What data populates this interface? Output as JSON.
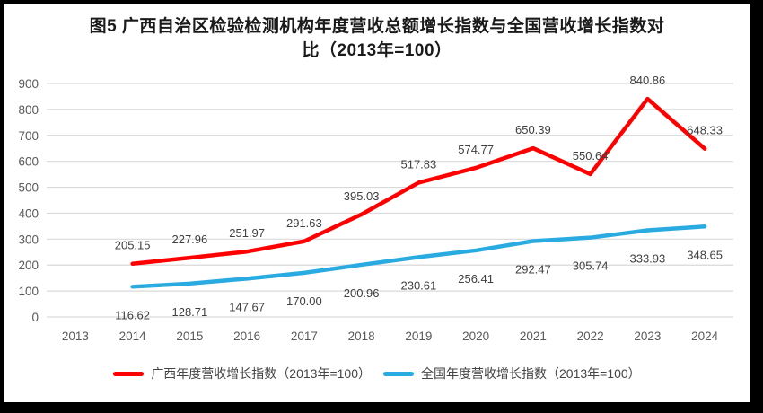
{
  "frame": {
    "border_color": "#000000",
    "background": "#FFFFFF"
  },
  "chart_data": {
    "type": "line",
    "title": "图5 广西自治区检验检测机构年度营收总额增长指数与全国营收增长指数对比（2013年=100）",
    "title_lines": [
      "图5  广西自治区检验检测机构年度营收总额增长指数与全国营收增长指数对",
      "比（2013年=100）"
    ],
    "categories": [
      "2013",
      "2014",
      "2015",
      "2016",
      "2017",
      "2018",
      "2019",
      "2020",
      "2021",
      "2022",
      "2023",
      "2024"
    ],
    "series": [
      {
        "name": "广西年度营收增长指数（2013年=100）",
        "color": "#FF0000",
        "label_position": "above",
        "values": [
          null,
          205.15,
          227.96,
          251.97,
          291.63,
          395.03,
          517.83,
          574.77,
          650.39,
          550.64,
          840.86,
          648.33
        ],
        "labels": [
          "",
          "205.15",
          "227.96",
          "251.97",
          "291.63",
          "395.03",
          "517.83",
          "574.77",
          "650.39",
          "550.64",
          "840.86",
          "648.33"
        ]
      },
      {
        "name": "全国年度营收增长指数（2013年=100）",
        "color": "#29ABE2",
        "label_position": "below",
        "values": [
          null,
          116.62,
          128.71,
          147.67,
          170.0,
          200.96,
          230.61,
          256.41,
          292.47,
          305.74,
          333.93,
          348.65
        ],
        "labels": [
          "",
          "116.62",
          "128.71",
          "147.67",
          "170.00",
          "200.96",
          "230.61",
          "256.41",
          "292.47",
          "305.74",
          "333.93",
          "348.65"
        ]
      }
    ],
    "ylim": [
      0,
      900
    ],
    "ytick_step": 100,
    "ytick_labels": [
      "0",
      "100",
      "200",
      "300",
      "400",
      "500",
      "600",
      "700",
      "800",
      "900"
    ],
    "grid": true,
    "legend_position": "bottom",
    "colors": {
      "gridline": "#D9D9D9",
      "axis_text": "#595959",
      "data_label": "#404040",
      "title_text": "#1A1A1A"
    }
  }
}
